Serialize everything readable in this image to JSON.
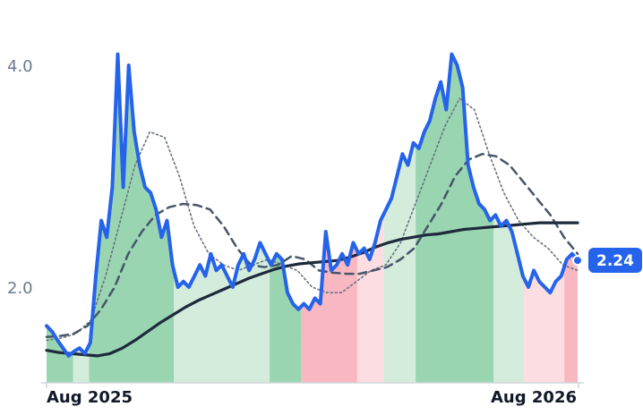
{
  "chart_data": {
    "type": "line",
    "title": "",
    "xlabel": "",
    "ylabel": "",
    "x_ticks": [
      "Aug 2025",
      "Aug 2026"
    ],
    "y_ticks": [
      "2.0",
      "4.0"
    ],
    "ylim": [
      1.2,
      4.55
    ],
    "grid": false,
    "last_value_label": "2.24",
    "colors": {
      "price": "#2563eb",
      "slow_ma": "#1e293b",
      "mid_ma": "#475569",
      "fast_ma": "#6b7280",
      "up_strong": "#99d5b1",
      "up_weak": "#d3ecdc",
      "down_strong": "#f8b7c1",
      "down_weak": "#fcdde2",
      "badge": "#2563eb"
    },
    "series": [
      {
        "key": "price",
        "values": [
          1.65,
          1.6,
          1.52,
          1.45,
          1.38,
          1.42,
          1.45,
          1.4,
          1.5,
          2.1,
          2.6,
          2.45,
          2.9,
          4.1,
          2.9,
          4.0,
          3.4,
          3.1,
          2.9,
          2.85,
          2.7,
          2.45,
          2.6,
          2.2,
          2.0,
          2.05,
          2.0,
          2.1,
          2.2,
          2.1,
          2.3,
          2.15,
          2.2,
          2.1,
          2.0,
          2.2,
          2.3,
          2.15,
          2.25,
          2.4,
          2.3,
          2.2,
          2.3,
          2.25,
          1.95,
          1.85,
          1.8,
          1.85,
          1.8,
          1.9,
          1.85,
          2.5,
          2.15,
          2.2,
          2.3,
          2.2,
          2.4,
          2.3,
          2.35,
          2.25,
          2.4,
          2.6,
          2.7,
          2.8,
          3.0,
          3.2,
          3.1,
          3.3,
          3.25,
          3.4,
          3.5,
          3.7,
          3.85,
          3.6,
          4.1,
          4.0,
          3.8,
          3.1,
          2.9,
          2.75,
          2.7,
          2.6,
          2.65,
          2.55,
          2.6,
          2.5,
          2.3,
          2.1,
          2.0,
          2.15,
          2.05,
          2.0,
          1.95,
          2.05,
          2.1,
          2.25,
          2.3,
          2.24
        ]
      },
      {
        "key": "slow_ma",
        "values": [
          1.43,
          1.41,
          1.4,
          1.39,
          1.38,
          1.4,
          1.45,
          1.52,
          1.6,
          1.68,
          1.75,
          1.82,
          1.88,
          1.93,
          1.98,
          2.03,
          2.08,
          2.12,
          2.16,
          2.19,
          2.21,
          2.22,
          2.23,
          2.24,
          2.27,
          2.31,
          2.36,
          2.4,
          2.43,
          2.45,
          2.47,
          2.48,
          2.5,
          2.52,
          2.53,
          2.54,
          2.55,
          2.56,
          2.57,
          2.58,
          2.58,
          2.58,
          2.58
        ]
      },
      {
        "key": "mid_ma",
        "values": [
          1.55,
          1.56,
          1.58,
          1.65,
          1.8,
          2.0,
          2.3,
          2.5,
          2.65,
          2.72,
          2.75,
          2.74,
          2.7,
          2.55,
          2.35,
          2.2,
          2.18,
          2.2,
          2.28,
          2.25,
          2.15,
          2.13,
          2.12,
          2.12,
          2.15,
          2.18,
          2.25,
          2.35,
          2.55,
          2.75,
          3.0,
          3.15,
          3.2,
          3.18,
          3.1,
          2.95,
          2.8,
          2.65,
          2.45,
          2.3
        ]
      },
      {
        "key": "fast_ma",
        "values": [
          1.52,
          1.54,
          1.58,
          1.7,
          2.1,
          2.6,
          3.1,
          3.4,
          3.35,
          3.0,
          2.55,
          2.3,
          2.2,
          2.15,
          2.2,
          2.25,
          2.2,
          2.15,
          2.0,
          1.95,
          1.95,
          2.05,
          2.15,
          2.2,
          2.4,
          2.75,
          3.1,
          3.45,
          3.7,
          3.6,
          3.2,
          2.85,
          2.6,
          2.45,
          2.35,
          2.2,
          2.15
        ]
      }
    ],
    "bands": [
      {
        "state": "up-strong",
        "to": 0.05
      },
      {
        "state": "up-weak",
        "to": 0.08
      },
      {
        "state": "up-strong",
        "to": 0.24
      },
      {
        "state": "up-weak",
        "to": 0.42
      },
      {
        "state": "up-strong",
        "to": 0.48
      },
      {
        "state": "down-strong",
        "to": 0.585
      },
      {
        "state": "down-weak",
        "to": 0.635
      },
      {
        "state": "up-weak",
        "to": 0.695
      },
      {
        "state": "up-strong",
        "to": 0.842
      },
      {
        "state": "up-weak",
        "to": 0.898
      },
      {
        "state": "down-weak",
        "to": 0.975
      },
      {
        "state": "down-strong",
        "to": 1.0
      }
    ]
  }
}
